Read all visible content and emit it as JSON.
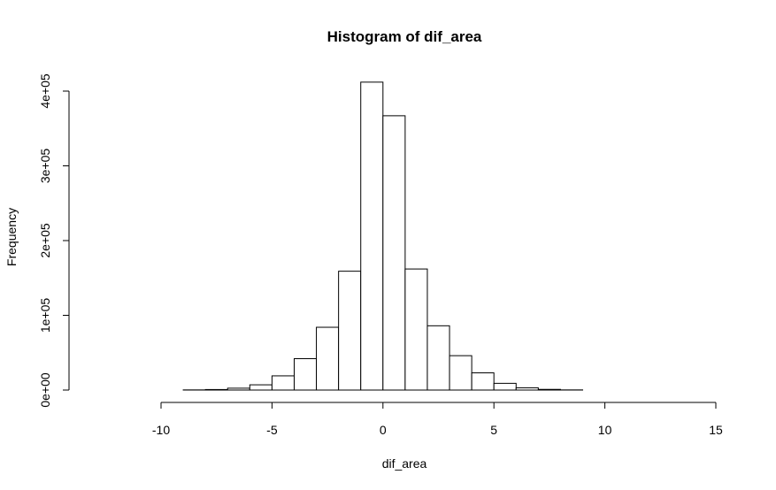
{
  "chart_data": {
    "type": "bar",
    "title": "Histogram of dif_area",
    "xlabel": "dif_area",
    "ylabel": "Frequency",
    "xlim": [
      -13,
      15
    ],
    "ylim": [
      0,
      420000
    ],
    "x_ticks": [
      -10,
      -5,
      0,
      5,
      10,
      15
    ],
    "x_tick_labels": [
      "-10",
      "-5",
      "0",
      "5",
      "10",
      "15"
    ],
    "y_ticks": [
      0,
      100000,
      200000,
      300000,
      400000
    ],
    "y_tick_labels": [
      "0e+00",
      "1e+05",
      "2e+05",
      "3e+05",
      "4e+05"
    ],
    "bin_width": 1,
    "bins": [
      {
        "start": -13,
        "end": -12,
        "count": 0
      },
      {
        "start": -12,
        "end": -11,
        "count": 0
      },
      {
        "start": -11,
        "end": -10,
        "count": 0
      },
      {
        "start": -10,
        "end": -9,
        "count": 0
      },
      {
        "start": -9,
        "end": -8,
        "count": 200
      },
      {
        "start": -8,
        "end": -7,
        "count": 700
      },
      {
        "start": -7,
        "end": -6,
        "count": 2500
      },
      {
        "start": -6,
        "end": -5,
        "count": 7000
      },
      {
        "start": -5,
        "end": -4,
        "count": 19000
      },
      {
        "start": -4,
        "end": -3,
        "count": 42000
      },
      {
        "start": -3,
        "end": -2,
        "count": 84000
      },
      {
        "start": -2,
        "end": -1,
        "count": 159000
      },
      {
        "start": -1,
        "end": 0,
        "count": 412000
      },
      {
        "start": 0,
        "end": 1,
        "count": 367000
      },
      {
        "start": 1,
        "end": 2,
        "count": 162000
      },
      {
        "start": 2,
        "end": 3,
        "count": 86000
      },
      {
        "start": 3,
        "end": 4,
        "count": 46000
      },
      {
        "start": 4,
        "end": 5,
        "count": 23000
      },
      {
        "start": 5,
        "end": 6,
        "count": 9000
      },
      {
        "start": 6,
        "end": 7,
        "count": 3000
      },
      {
        "start": 7,
        "end": 8,
        "count": 900
      },
      {
        "start": 8,
        "end": 9,
        "count": 200
      },
      {
        "start": 9,
        "end": 10,
        "count": 0
      },
      {
        "start": 10,
        "end": 11,
        "count": 0
      },
      {
        "start": 11,
        "end": 12,
        "count": 0
      },
      {
        "start": 12,
        "end": 13,
        "count": 0
      },
      {
        "start": 13,
        "end": 14,
        "count": 0
      },
      {
        "start": 14,
        "end": 15,
        "count": 0
      }
    ],
    "grid": false,
    "legend": "none"
  }
}
